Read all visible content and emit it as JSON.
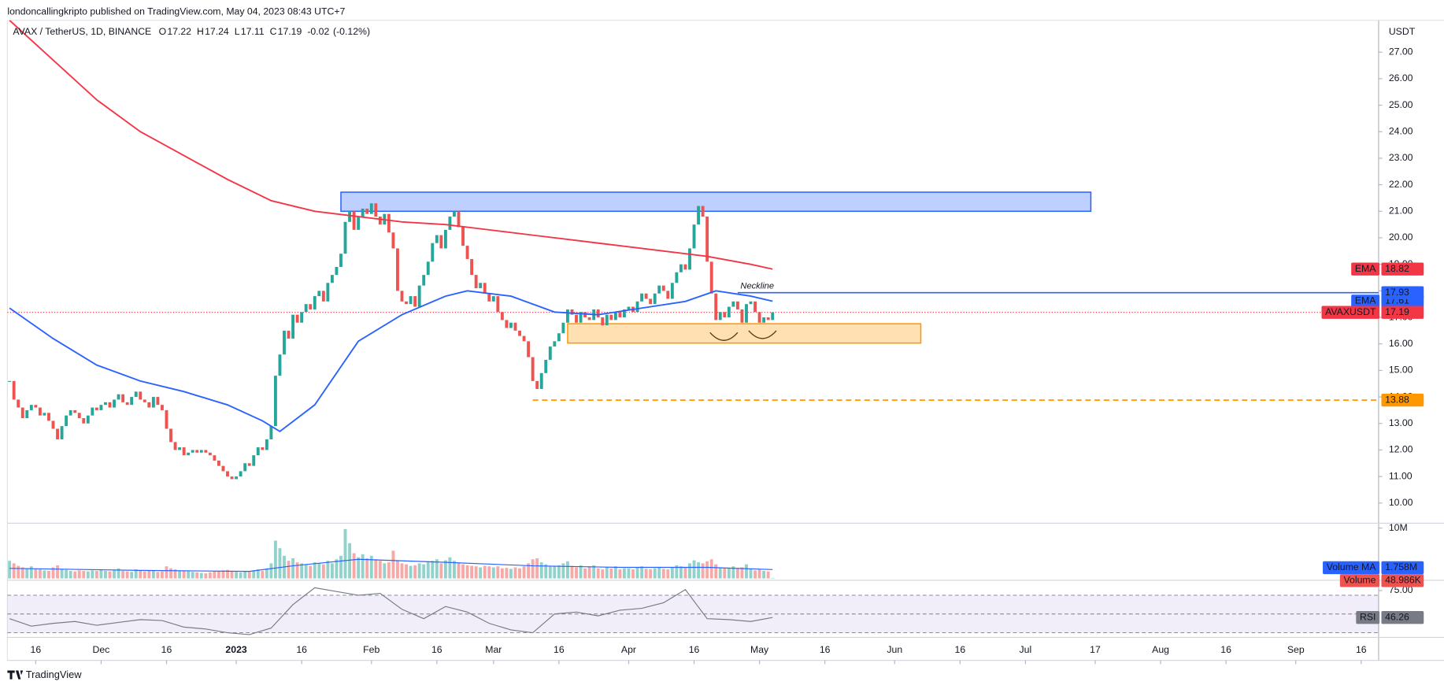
{
  "header": "londoncallingkripto published on TradingView.com, May 04, 2023 08:43 UTC+7",
  "footer": "TradingView",
  "chart_data": {
    "type": "candlestick",
    "legend": {
      "symbol": "AVAX / TetherUS, 1D, BINANCE",
      "items": [
        {
          "key": "O",
          "value": 17.22
        },
        {
          "key": "H",
          "value": 17.24
        },
        {
          "key": "L",
          "value": 17.11
        },
        {
          "key": "C",
          "value": 17.19
        }
      ],
      "change": -0.02,
      "change_pct": {
        "value": -0.12,
        "label": "(-0.12%)"
      }
    },
    "currency": "USDT",
    "xlim": [
      -0.5,
      314
    ],
    "xticks": [
      {
        "value": 6,
        "label": "16"
      },
      {
        "value": 21,
        "label": "Dec"
      },
      {
        "value": 36,
        "label": "16"
      },
      {
        "value": 52,
        "label": "2023"
      },
      {
        "value": 67,
        "label": "16"
      },
      {
        "value": 83,
        "label": "Feb"
      },
      {
        "value": 98,
        "label": "16"
      },
      {
        "value": 111,
        "label": "Mar"
      },
      {
        "value": 126,
        "label": "16"
      },
      {
        "value": 142,
        "label": "Apr"
      },
      {
        "value": 157,
        "label": "16"
      },
      {
        "value": 172,
        "label": "May"
      },
      {
        "value": 187,
        "label": "16"
      },
      {
        "value": 203,
        "label": "Jun"
      },
      {
        "value": 218,
        "label": "16"
      },
      {
        "value": 233,
        "label": "Jul"
      },
      {
        "value": 249,
        "label": "17"
      },
      {
        "value": 264,
        "label": "Aug"
      },
      {
        "value": 279,
        "label": "16"
      },
      {
        "value": 295,
        "label": "Sep"
      },
      {
        "value": 310,
        "label": "16"
      }
    ],
    "ylim": [
      9.24,
      28.2
    ],
    "yticks": [
      {
        "value": 10,
        "label": "10.00"
      },
      {
        "value": 11,
        "label": "11.00"
      },
      {
        "value": 12,
        "label": "12.00"
      },
      {
        "value": 13,
        "label": "13.00"
      },
      {
        "value": 14,
        "label": "14.00"
      },
      {
        "value": 15,
        "label": "15.00"
      },
      {
        "value": 16,
        "label": "16.00"
      },
      {
        "value": 17,
        "label": "17.00"
      },
      {
        "value": 18,
        "label": "18.00"
      },
      {
        "value": 19,
        "label": "19.00"
      },
      {
        "value": 20,
        "label": "20.00"
      },
      {
        "value": 21,
        "label": "21.00"
      },
      {
        "value": 22,
        "label": "22.00"
      },
      {
        "value": 23,
        "label": "23.00"
      },
      {
        "value": 24,
        "label": "24.00"
      },
      {
        "value": 25,
        "label": "25.00"
      },
      {
        "value": 26,
        "label": "26.00"
      },
      {
        "value": 27,
        "label": "27.00"
      }
    ],
    "close": [
      14.6,
      13.9,
      13.6,
      13.2,
      13.5,
      13.7,
      13.6,
      13.3,
      13.4,
      13.1,
      12.8,
      12.4,
      12.9,
      13.3,
      13.5,
      13.4,
      13.2,
      13.0,
      13.3,
      13.6,
      13.5,
      13.7,
      13.8,
      13.6,
      13.9,
      14.1,
      13.8,
      13.7,
      14.0,
      14.2,
      13.9,
      13.8,
      13.6,
      14.0,
      13.7,
      13.5,
      12.8,
      12.3,
      12.0,
      12.1,
      11.8,
      11.9,
      12.0,
      11.9,
      12.0,
      11.9,
      11.8,
      11.6,
      11.4,
      11.2,
      11.0,
      10.9,
      11.0,
      11.2,
      11.5,
      11.4,
      11.8,
      12.1,
      12.0,
      12.4,
      12.9,
      14.8,
      15.6,
      16.5,
      16.2,
      17.1,
      16.8,
      17.2,
      17.5,
      17.3,
      17.8,
      18.0,
      17.6,
      18.3,
      18.6,
      18.9,
      19.4,
      20.6,
      21.0,
      20.3,
      20.8,
      21.1,
      20.9,
      21.3,
      20.8,
      20.5,
      20.9,
      20.2,
      19.6,
      18.0,
      17.6,
      17.5,
      17.8,
      17.4,
      18.2,
      18.6,
      19.1,
      19.8,
      20.1,
      19.6,
      20.3,
      20.8,
      21.0,
      20.4,
      19.7,
      19.2,
      18.6,
      18.1,
      18.3,
      17.9,
      17.6,
      17.8,
      17.2,
      16.9,
      16.6,
      16.8,
      16.5,
      16.3,
      16.1,
      15.5,
      14.6,
      14.3,
      14.9,
      15.4,
      15.9,
      16.1,
      16.4,
      16.8,
      17.3,
      17.1,
      16.8,
      17.2,
      17.0,
      16.9,
      17.3,
      17.0,
      16.7,
      17.1,
      16.9,
      17.2,
      17.0,
      17.3,
      17.4,
      17.2,
      17.6,
      17.9,
      17.7,
      17.5,
      17.9,
      18.2,
      18.0,
      17.7,
      18.3,
      18.7,
      19.0,
      18.8,
      19.6,
      20.5,
      21.2,
      20.8,
      19.1,
      17.9,
      16.9,
      17.2,
      17.0,
      17.4,
      17.6,
      17.3,
      16.8,
      17.5,
      17.6,
      17.2,
      16.8,
      17.0,
      16.9,
      17.19
    ],
    "up_color": "#26a69a",
    "down_color": "#ef5350",
    "symbol_tag": "AVAXUSDT",
    "price_line_color": "#f23645",
    "series": [
      {
        "name": "EMA",
        "color": "#f23645",
        "x": [
          0,
          10,
          20,
          30,
          40,
          50,
          60,
          70,
          80,
          90,
          100,
          110,
          120,
          130,
          140,
          150,
          160,
          170,
          175
        ],
        "values": [
          28.2,
          26.7,
          25.2,
          24.0,
          23.1,
          22.2,
          21.4,
          21.0,
          20.8,
          20.6,
          20.5,
          20.3,
          20.1,
          19.9,
          19.7,
          19.5,
          19.3,
          19.0,
          18.82
        ]
      },
      {
        "name": "EMA",
        "color": "#2962ff",
        "x": [
          0,
          10,
          20,
          30,
          40,
          50,
          58,
          62,
          70,
          80,
          90,
          100,
          105,
          115,
          125,
          135,
          145,
          155,
          162,
          170,
          175
        ],
        "values": [
          17.35,
          16.2,
          15.2,
          14.6,
          14.2,
          13.7,
          13.1,
          12.7,
          13.7,
          16.1,
          17.1,
          17.8,
          18.0,
          17.8,
          17.2,
          17.1,
          17.35,
          17.6,
          18.0,
          17.8,
          17.61
        ]
      }
    ],
    "zones": [
      {
        "from": 76,
        "to": 248,
        "low": 21.0,
        "high": 21.72,
        "color": "#2962ff"
      },
      {
        "from": 128,
        "to": 209,
        "low": 16.03,
        "high": 16.76,
        "color": "#ff9800"
      }
    ],
    "levels": [
      {
        "name": "Neckline",
        "value": 17.93,
        "from": 167,
        "color": "#2962ff",
        "style": "solid"
      },
      {
        "value": 13.88,
        "from": 120,
        "color": "#ff9800",
        "style": "dashed"
      }
    ],
    "volume": {
      "name": "Volume",
      "ylim": [
        0,
        10.6
      ],
      "yticks": [
        {
          "value": 10,
          "label": "10M"
        }
      ],
      "values": [
        3.5,
        3.0,
        2.5,
        2.2,
        2.0,
        2.4,
        2.0,
        1.8,
        1.6,
        1.5,
        2.2,
        2.6,
        1.8,
        1.7,
        1.5,
        1.4,
        1.6,
        1.5,
        1.4,
        1.6,
        1.5,
        1.7,
        1.5,
        1.4,
        1.6,
        2.0,
        1.5,
        1.4,
        1.3,
        1.8,
        1.5,
        1.4,
        1.6,
        1.5,
        1.3,
        1.4,
        2.4,
        2.0,
        1.8,
        1.5,
        1.6,
        1.4,
        1.3,
        1.2,
        1.1,
        1.0,
        1.2,
        1.4,
        1.5,
        1.6,
        1.7,
        1.5,
        1.3,
        1.2,
        1.4,
        1.3,
        1.6,
        1.8,
        1.5,
        2.0,
        3.0,
        7.5,
        6.0,
        4.5,
        3.5,
        4.0,
        3.2,
        3.0,
        2.8,
        2.5,
        3.2,
        3.0,
        2.8,
        3.5,
        3.0,
        3.8,
        4.5,
        9.8,
        7.0,
        5.0,
        4.2,
        4.8,
        4.0,
        4.5,
        3.8,
        3.5,
        3.0,
        3.2,
        5.5,
        3.5,
        3.0,
        2.8,
        2.5,
        2.6,
        3.0,
        2.8,
        3.2,
        3.5,
        3.8,
        3.0,
        3.6,
        4.2,
        3.5,
        3.0,
        2.8,
        2.6,
        2.5,
        2.4,
        2.2,
        2.5,
        2.4,
        2.2,
        2.4,
        2.0,
        2.1,
        1.9,
        2.2,
        2.0,
        2.4,
        3.0,
        3.8,
        4.0,
        3.2,
        2.8,
        2.5,
        2.4,
        2.6,
        3.0,
        3.4,
        2.5,
        2.2,
        2.6,
        2.0,
        2.4,
        2.6,
        2.0,
        1.8,
        2.2,
        2.0,
        2.4,
        1.8,
        2.0,
        2.0,
        1.8,
        2.2,
        2.4,
        1.9,
        1.8,
        2.0,
        2.3,
        1.9,
        1.8,
        2.2,
        2.6,
        2.4,
        2.2,
        3.0,
        3.6,
        3.2,
        3.0,
        3.4,
        3.8,
        2.8,
        2.2,
        2.0,
        2.1,
        2.4,
        2.0,
        2.2,
        2.8,
        1.9,
        1.6,
        1.8,
        1.5,
        1.4,
        0.048986
      ],
      "last_label": "48.986K",
      "ma": {
        "name": "Volume MA",
        "color": "#2962ff",
        "x": [
          0,
          30,
          55,
          65,
          80,
          100,
          120,
          140,
          160,
          175
        ],
        "values": [
          2.0,
          1.6,
          1.4,
          2.5,
          3.8,
          3.2,
          2.5,
          2.2,
          2.2,
          1.758
        ],
        "last_label": "1.758M"
      }
    },
    "rsi": {
      "name": "RSI",
      "color": "#787b86",
      "ylim": [
        27,
        84
      ],
      "yticks": [
        {
          "value": 75,
          "label": "75.00"
        }
      ],
      "bands": [
        70,
        50,
        30
      ],
      "band_color": "#7e57c2",
      "x": [
        0,
        5,
        10,
        15,
        20,
        25,
        30,
        35,
        40,
        45,
        50,
        55,
        60,
        65,
        70,
        75,
        80,
        85,
        90,
        95,
        100,
        105,
        110,
        115,
        120,
        125,
        130,
        135,
        140,
        145,
        150,
        155,
        160,
        165,
        170,
        175
      ],
      "values": [
        45,
        37,
        40,
        42,
        38,
        41,
        44,
        43,
        36,
        34,
        30,
        28,
        35,
        60,
        78,
        74,
        70,
        72,
        55,
        45,
        58,
        52,
        40,
        33,
        30,
        50,
        52,
        48,
        54,
        56,
        62,
        76,
        45,
        44,
        42,
        46.26
      ]
    }
  }
}
